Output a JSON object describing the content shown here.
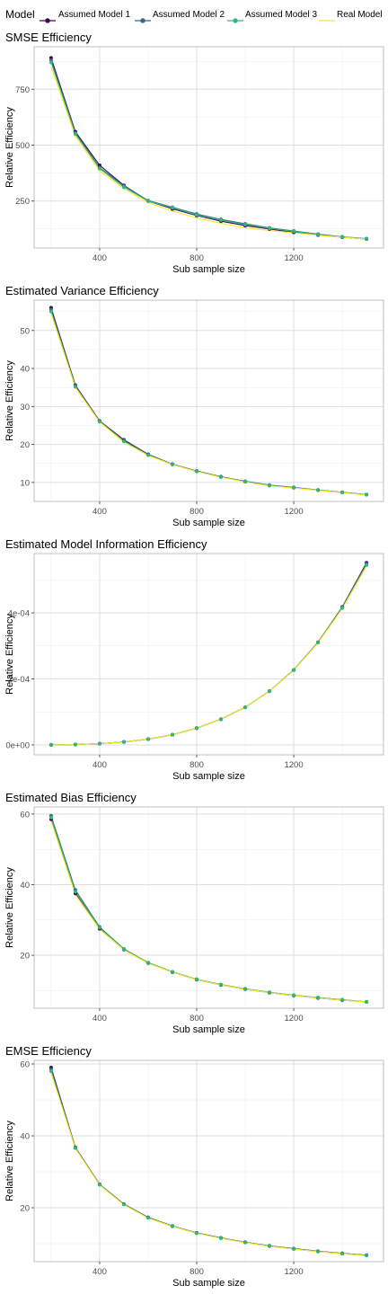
{
  "legend": {
    "title": "Model",
    "entries": [
      {
        "name": "Assumed Model 1",
        "color": "#440154"
      },
      {
        "name": "Assumed Model 2",
        "color": "#31688e"
      },
      {
        "name": "Assumed Model 3",
        "color": "#35b779"
      },
      {
        "name": "Real Model",
        "color": "#fde725"
      }
    ]
  },
  "chart_data": [
    {
      "type": "line",
      "title": "SMSE Efficiency",
      "xlabel": "Sub sample size",
      "ylabel": "Relative Efficiency",
      "xlim": [
        130,
        1570
      ],
      "ylim": [
        40,
        940
      ],
      "xticks": [
        400,
        800,
        1200
      ],
      "xtick_labels": [
        "400",
        "800",
        "1200"
      ],
      "yticks": [
        250,
        500,
        750
      ],
      "ytick_labels": [
        "250",
        "500",
        "750"
      ],
      "grid": true,
      "x": [
        200,
        300,
        400,
        500,
        600,
        700,
        800,
        900,
        1000,
        1100,
        1200,
        1300,
        1400,
        1500
      ],
      "series": [
        {
          "name": "Assumed Model 1",
          "values": [
            890,
            560,
            410,
            320,
            250,
            215,
            185,
            160,
            140,
            125,
            110,
            98,
            88,
            80
          ]
        },
        {
          "name": "Assumed Model 2",
          "values": [
            880,
            555,
            400,
            318,
            252,
            222,
            192,
            168,
            148,
            130,
            116,
            102,
            90,
            82
          ]
        },
        {
          "name": "Assumed Model 3",
          "values": [
            870,
            550,
            395,
            312,
            250,
            220,
            188,
            165,
            145,
            128,
            114,
            100,
            89,
            81
          ]
        },
        {
          "name": "Real Model",
          "values": [
            850,
            540,
            385,
            305,
            243,
            205,
            175,
            150,
            130,
            118,
            108,
            97,
            88,
            80
          ]
        }
      ]
    },
    {
      "type": "line",
      "title": "Estimated Variance Efficiency",
      "xlabel": "Sub sample size",
      "ylabel": "Relative Efficiency",
      "xlim": [
        130,
        1570
      ],
      "ylim": [
        5,
        58
      ],
      "xticks": [
        400,
        800,
        1200
      ],
      "xtick_labels": [
        "400",
        "800",
        "1200"
      ],
      "yticks": [
        10,
        20,
        30,
        40,
        50
      ],
      "ytick_labels": [
        "10",
        "20",
        "30",
        "40",
        "50"
      ],
      "grid": true,
      "x": [
        200,
        300,
        400,
        500,
        600,
        700,
        800,
        900,
        1000,
        1100,
        1200,
        1300,
        1400,
        1500
      ],
      "series": [
        {
          "name": "Assumed Model 1",
          "values": [
            56,
            35.6,
            26.2,
            21.2,
            17.4,
            14.8,
            13.0,
            11.5,
            10.2,
            9.2,
            8.6,
            8.0,
            7.4,
            6.8
          ]
        },
        {
          "name": "Assumed Model 2",
          "values": [
            55.5,
            35.4,
            26.1,
            21.0,
            17.3,
            14.8,
            13.0,
            11.5,
            10.3,
            9.3,
            8.7,
            8.0,
            7.4,
            6.8
          ]
        },
        {
          "name": "Assumed Model 3",
          "values": [
            55,
            35.2,
            26.0,
            20.8,
            17.2,
            14.7,
            12.9,
            11.4,
            10.2,
            9.2,
            8.6,
            8.0,
            7.4,
            6.8
          ]
        },
        {
          "name": "Real Model",
          "values": [
            54.5,
            35.0,
            25.9,
            20.6,
            17.1,
            14.7,
            12.9,
            11.4,
            10.1,
            9.1,
            8.5,
            7.9,
            7.3,
            6.7
          ]
        }
      ]
    },
    {
      "type": "line",
      "title": "Estimated Model Information Efficiency",
      "xlabel": "Sub sample size",
      "ylabel": "Relative Efficiency",
      "xlim": [
        130,
        1570
      ],
      "ylim": [
        -3e-05,
        0.00058
      ],
      "xticks": [
        400,
        800,
        1200
      ],
      "xtick_labels": [
        "400",
        "800",
        "1200"
      ],
      "yticks": [
        0,
        0.0002,
        0.0004
      ],
      "ytick_labels": [
        "0e+00",
        "2e-04",
        "4e-04"
      ],
      "grid": true,
      "x": [
        200,
        300,
        400,
        500,
        600,
        700,
        800,
        900,
        1000,
        1100,
        1200,
        1300,
        1400,
        1500
      ],
      "series": [
        {
          "name": "Assumed Model 1",
          "values": [
            2e-07,
            1.2e-06,
            4e-06,
            9e-06,
            1.75e-05,
            3.1e-05,
            5.1e-05,
            7.8e-05,
            0.000114,
            0.000163,
            0.000227,
            0.000311,
            0.000418,
            0.000552
          ]
        },
        {
          "name": "Assumed Model 2",
          "values": [
            2e-07,
            1.2e-06,
            4e-06,
            9e-06,
            1.75e-05,
            3.1e-05,
            5.1e-05,
            7.8e-05,
            0.000114,
            0.000163,
            0.000227,
            0.000311,
            0.000417,
            0.000549
          ]
        },
        {
          "name": "Assumed Model 3",
          "values": [
            2e-07,
            1.2e-06,
            4e-06,
            9e-06,
            1.75e-05,
            3.1e-05,
            5.1e-05,
            7.8e-05,
            0.000114,
            0.000163,
            0.000227,
            0.00031,
            0.000415,
            0.000545
          ]
        },
        {
          "name": "Real Model",
          "values": [
            2e-07,
            1.2e-06,
            4e-06,
            9e-06,
            1.75e-05,
            3.1e-05,
            5.1e-05,
            7.8e-05,
            0.000114,
            0.000163,
            0.000226,
            0.000309,
            0.000413,
            0.000542
          ]
        }
      ]
    },
    {
      "type": "line",
      "title": "Estimated Bias Efficiency",
      "xlabel": "Sub sample size",
      "ylabel": "Relative Efficiency",
      "xlim": [
        130,
        1570
      ],
      "ylim": [
        5,
        62
      ],
      "xticks": [
        400,
        800,
        1200
      ],
      "xtick_labels": [
        "400",
        "800",
        "1200"
      ],
      "yticks": [
        20,
        40,
        60
      ],
      "ytick_labels": [
        "20",
        "40",
        "60"
      ],
      "grid": true,
      "x": [
        200,
        300,
        400,
        500,
        600,
        700,
        800,
        900,
        1000,
        1100,
        1200,
        1300,
        1400,
        1500
      ],
      "series": [
        {
          "name": "Assumed Model 1",
          "values": [
            58.5,
            37.5,
            27.5,
            21.6,
            17.8,
            15.2,
            13.1,
            11.6,
            10.4,
            9.4,
            8.6,
            7.9,
            7.3,
            6.8
          ]
        },
        {
          "name": "Assumed Model 2",
          "values": [
            59.5,
            38.5,
            28.0,
            21.8,
            17.9,
            15.3,
            13.2,
            11.7,
            10.5,
            9.5,
            8.7,
            8.0,
            7.4,
            6.8
          ]
        },
        {
          "name": "Assumed Model 3",
          "values": [
            59.0,
            38.0,
            27.8,
            21.7,
            17.9,
            15.3,
            13.2,
            11.7,
            10.5,
            9.5,
            8.7,
            8.0,
            7.4,
            6.8
          ]
        },
        {
          "name": "Real Model",
          "values": [
            58.0,
            37.2,
            27.4,
            21.5,
            17.7,
            15.2,
            13.1,
            11.6,
            10.4,
            9.4,
            8.6,
            7.9,
            7.3,
            6.8
          ]
        }
      ]
    },
    {
      "type": "line",
      "title": "EMSE Efficiency",
      "xlabel": "Sub sample size",
      "ylabel": "Relative Efficiency",
      "xlim": [
        130,
        1570
      ],
      "ylim": [
        5,
        61
      ],
      "xticks": [
        400,
        800,
        1200
      ],
      "xtick_labels": [
        "400",
        "800",
        "1200"
      ],
      "yticks": [
        20,
        40,
        60
      ],
      "ytick_labels": [
        "20",
        "40",
        "60"
      ],
      "grid": true,
      "x": [
        200,
        300,
        400,
        500,
        600,
        700,
        800,
        900,
        1000,
        1100,
        1200,
        1300,
        1400,
        1500
      ],
      "series": [
        {
          "name": "Assumed Model 1",
          "values": [
            59.0,
            36.8,
            26.5,
            21.0,
            17.3,
            14.9,
            13.0,
            11.6,
            10.4,
            9.4,
            8.6,
            7.9,
            7.3,
            6.8
          ]
        },
        {
          "name": "Assumed Model 2",
          "values": [
            58.5,
            36.7,
            26.5,
            21.0,
            17.3,
            14.9,
            13.0,
            11.6,
            10.4,
            9.4,
            8.6,
            7.9,
            7.3,
            6.8
          ]
        },
        {
          "name": "Assumed Model 3",
          "values": [
            58.0,
            36.6,
            26.4,
            20.9,
            17.2,
            14.8,
            12.9,
            11.5,
            10.3,
            9.3,
            8.5,
            7.8,
            7.2,
            6.7
          ]
        },
        {
          "name": "Real Model",
          "values": [
            57.5,
            36.5,
            26.3,
            20.8,
            17.1,
            14.8,
            12.9,
            11.5,
            10.3,
            9.3,
            8.5,
            7.8,
            7.2,
            6.7
          ]
        }
      ]
    }
  ]
}
